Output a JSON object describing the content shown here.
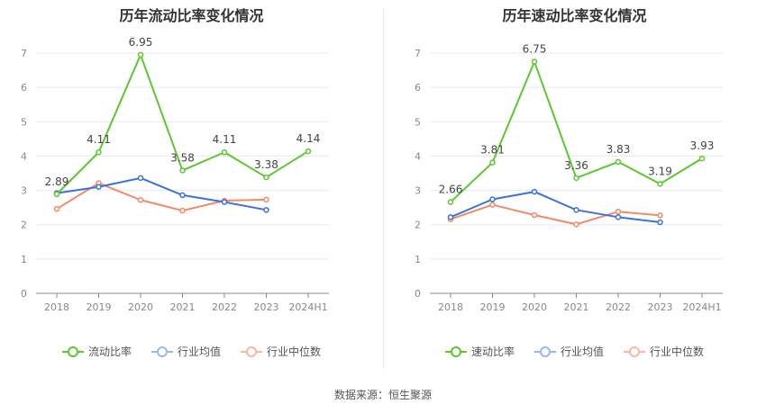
{
  "source_label": "数据来源：恒生聚源",
  "chart_data": [
    {
      "type": "line",
      "title": "历年流动比率变化情况",
      "categories": [
        "2018",
        "2019",
        "2020",
        "2021",
        "2022",
        "2023",
        "2024H1"
      ],
      "ylim": [
        0,
        7
      ],
      "yticks": [
        "0",
        "1",
        "2",
        "3",
        "4",
        "5",
        "6",
        "7"
      ],
      "grid": true,
      "legend_position": "bottom",
      "series": [
        {
          "name": "流动比率",
          "color": "#5cc72e",
          "values": [
            2.89,
            4.11,
            6.95,
            3.58,
            4.11,
            3.38,
            4.14
          ],
          "labels": [
            "2.89",
            "4.11",
            "6.95",
            "3.58",
            "4.11",
            "3.38",
            "4.14"
          ]
        },
        {
          "name": "行业均值",
          "color": "#3a73d9",
          "values": [
            2.92,
            3.1,
            3.36,
            2.86,
            2.66,
            2.43,
            null
          ]
        },
        {
          "name": "行业中位数",
          "color": "#f08a67",
          "values": [
            2.46,
            3.21,
            2.72,
            2.41,
            2.7,
            2.73,
            null
          ]
        }
      ]
    },
    {
      "type": "line",
      "title": "历年速动比率变化情况",
      "categories": [
        "2018",
        "2019",
        "2020",
        "2021",
        "2022",
        "2023",
        "2024H1"
      ],
      "ylim": [
        0,
        7
      ],
      "yticks": [
        "0",
        "1",
        "2",
        "3",
        "4",
        "5",
        "6",
        "7"
      ],
      "grid": true,
      "legend_position": "bottom",
      "series": [
        {
          "name": "速动比率",
          "color": "#5cc72e",
          "values": [
            2.66,
            3.81,
            6.75,
            3.36,
            3.83,
            3.19,
            3.93
          ],
          "labels": [
            "2.66",
            "3.81",
            "6.75",
            "3.36",
            "3.83",
            "3.19",
            "3.93"
          ]
        },
        {
          "name": "行业均值",
          "color": "#3a73d9",
          "values": [
            2.22,
            2.74,
            2.96,
            2.43,
            2.22,
            2.07,
            null
          ]
        },
        {
          "name": "行业中位数",
          "color": "#f08a67",
          "values": [
            2.16,
            2.58,
            2.28,
            2.01,
            2.38,
            2.27,
            null
          ]
        }
      ]
    }
  ]
}
